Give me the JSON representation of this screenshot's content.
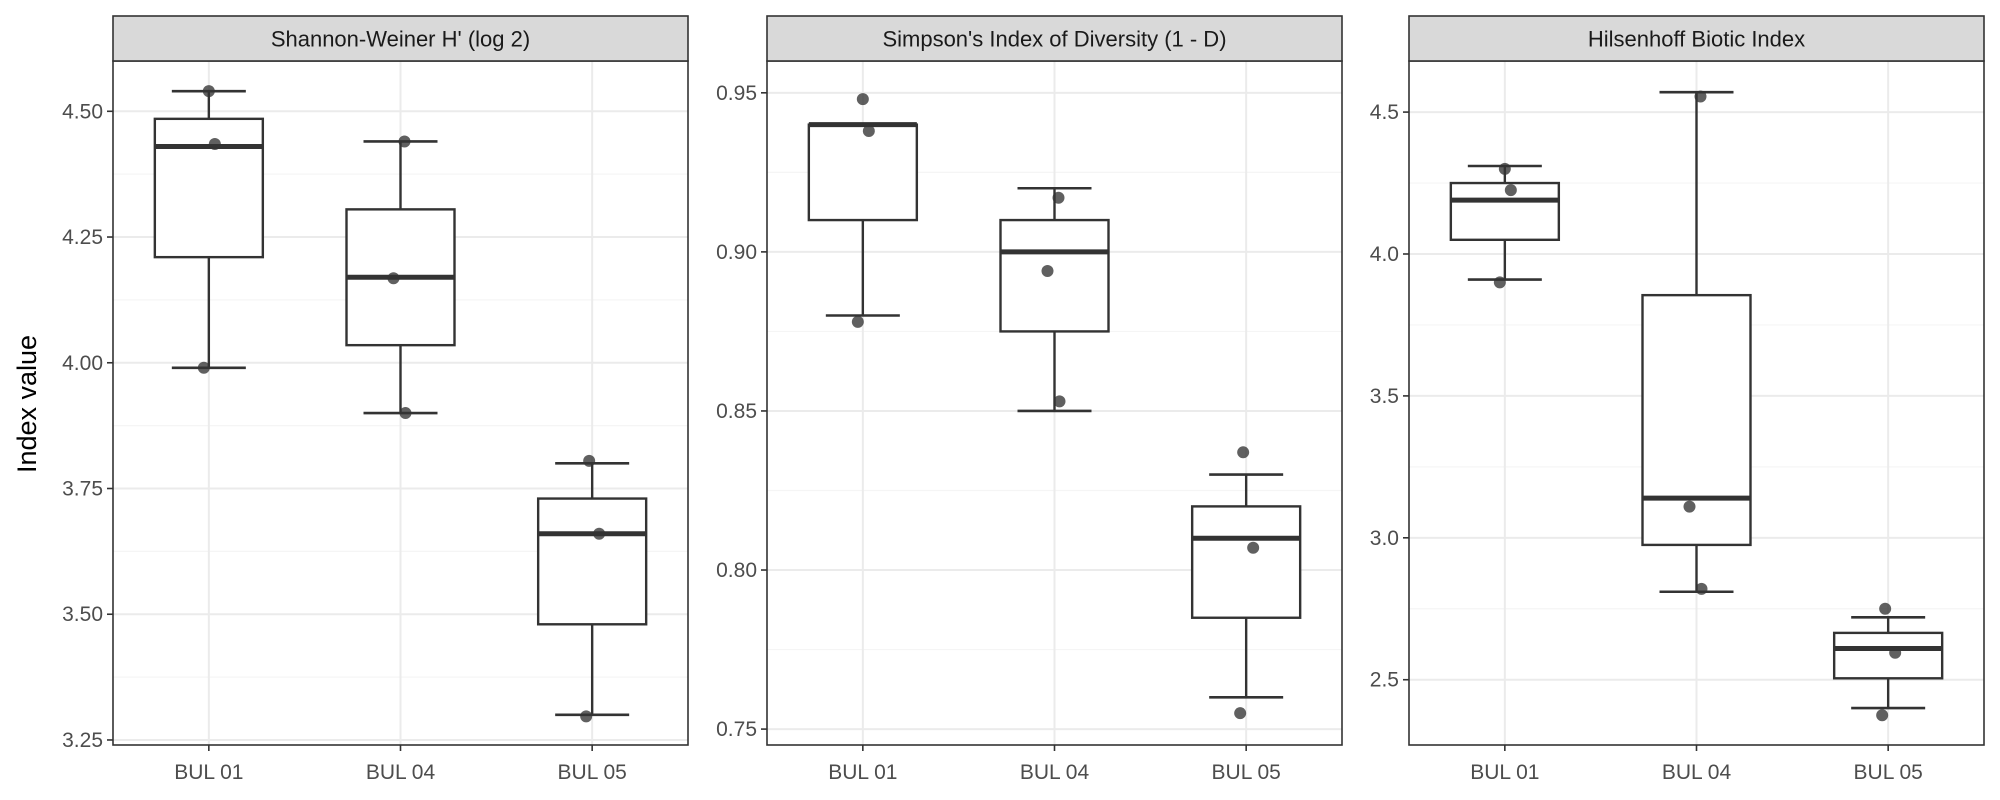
{
  "ylabel": "Index value",
  "colors": {
    "panel_background": "#ffffff",
    "strip_background": "#d9d9d9",
    "panel_border": "#333333",
    "grid_major": "#ebebeb",
    "grid_minor": "#f5f5f5",
    "box_line": "#333333",
    "point": "#333333"
  },
  "chart_data": [
    {
      "type": "box",
      "title": "Shannon-Weiner H' (log 2)",
      "categories": [
        "BUL 01",
        "BUL 04",
        "BUL 05"
      ],
      "ylim": [
        3.24,
        4.6
      ],
      "yticks": [
        3.25,
        3.5,
        3.75,
        4.0,
        4.25,
        4.5
      ],
      "ytick_labels": [
        "3.25",
        "3.50",
        "3.75",
        "4.00",
        "4.25",
        "4.50"
      ],
      "grid": true,
      "boxes": [
        {
          "category": "BUL 01",
          "min": 3.99,
          "q1": 4.21,
          "median": 4.43,
          "q3": 4.485,
          "max": 4.54
        },
        {
          "category": "BUL 04",
          "min": 3.9,
          "q1": 4.035,
          "median": 4.17,
          "q3": 4.305,
          "max": 4.44
        },
        {
          "category": "BUL 05",
          "min": 3.3,
          "q1": 3.48,
          "median": 3.66,
          "q3": 3.73,
          "max": 3.8
        }
      ],
      "points": [
        {
          "category": "BUL 01",
          "value": 4.54
        },
        {
          "category": "BUL 01",
          "value": 4.435
        },
        {
          "category": "BUL 01",
          "value": 3.99
        },
        {
          "category": "BUL 04",
          "value": 4.44
        },
        {
          "category": "BUL 04",
          "value": 4.168
        },
        {
          "category": "BUL 04",
          "value": 3.9
        },
        {
          "category": "BUL 05",
          "value": 3.805
        },
        {
          "category": "BUL 05",
          "value": 3.66
        },
        {
          "category": "BUL 05",
          "value": 3.297
        }
      ]
    },
    {
      "type": "box",
      "title": "Simpson's Index of Diversity (1 - D)",
      "categories": [
        "BUL 01",
        "BUL 04",
        "BUL 05"
      ],
      "ylim": [
        0.745,
        0.96
      ],
      "yticks": [
        0.75,
        0.8,
        0.85,
        0.9,
        0.95
      ],
      "ytick_labels": [
        "0.75",
        "0.80",
        "0.85",
        "0.90",
        "0.95"
      ],
      "grid": true,
      "boxes": [
        {
          "category": "BUL 01",
          "min": 0.88,
          "q1": 0.91,
          "median": 0.94,
          "q3": 0.94,
          "max": 0.94
        },
        {
          "category": "BUL 04",
          "min": 0.85,
          "q1": 0.875,
          "median": 0.9,
          "q3": 0.91,
          "max": 0.92
        },
        {
          "category": "BUL 05",
          "min": 0.76,
          "q1": 0.785,
          "median": 0.81,
          "q3": 0.82,
          "max": 0.83
        }
      ],
      "points": [
        {
          "category": "BUL 01",
          "value": 0.948
        },
        {
          "category": "BUL 01",
          "value": 0.938
        },
        {
          "category": "BUL 01",
          "value": 0.878
        },
        {
          "category": "BUL 04",
          "value": 0.917
        },
        {
          "category": "BUL 04",
          "value": 0.894
        },
        {
          "category": "BUL 04",
          "value": 0.853
        },
        {
          "category": "BUL 05",
          "value": 0.837
        },
        {
          "category": "BUL 05",
          "value": 0.807
        },
        {
          "category": "BUL 05",
          "value": 0.755
        }
      ]
    },
    {
      "type": "box",
      "title": "Hilsenhoff Biotic Index",
      "categories": [
        "BUL 01",
        "BUL 04",
        "BUL 05"
      ],
      "ylim": [
        2.27,
        4.68
      ],
      "yticks": [
        2.5,
        3.0,
        3.5,
        4.0,
        4.5
      ],
      "ytick_labels": [
        "2.5",
        "3.0",
        "3.5",
        "4.0",
        "4.5"
      ],
      "grid": true,
      "boxes": [
        {
          "category": "BUL 01",
          "min": 3.91,
          "q1": 4.05,
          "median": 4.19,
          "q3": 4.25,
          "max": 4.31
        },
        {
          "category": "BUL 04",
          "min": 2.81,
          "q1": 2.975,
          "median": 3.14,
          "q3": 3.855,
          "max": 4.57
        },
        {
          "category": "BUL 05",
          "min": 2.4,
          "q1": 2.505,
          "median": 2.61,
          "q3": 2.665,
          "max": 2.72
        }
      ],
      "points": [
        {
          "category": "BUL 01",
          "value": 4.3
        },
        {
          "category": "BUL 01",
          "value": 4.225
        },
        {
          "category": "BUL 01",
          "value": 3.9
        },
        {
          "category": "BUL 04",
          "value": 4.555
        },
        {
          "category": "BUL 04",
          "value": 3.11
        },
        {
          "category": "BUL 04",
          "value": 2.82
        },
        {
          "category": "BUL 05",
          "value": 2.75
        },
        {
          "category": "BUL 05",
          "value": 2.595
        },
        {
          "category": "BUL 05",
          "value": 2.375
        }
      ]
    }
  ]
}
